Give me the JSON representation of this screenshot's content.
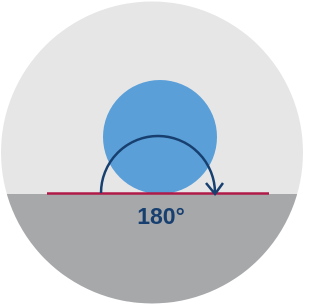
{
  "angle_label": "180°"
}
